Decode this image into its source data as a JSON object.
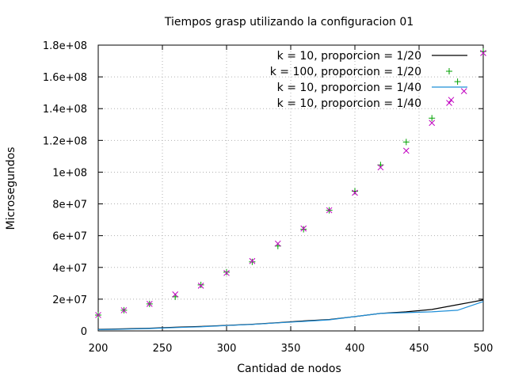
{
  "chart_data": {
    "type": "line",
    "title": "Tiempos grasp utilizando la configuracion 01",
    "xlabel": "Cantidad de nodos",
    "ylabel": "Microsegundos",
    "xlim": [
      200,
      500
    ],
    "ylim": [
      0,
      180000000
    ],
    "xticks": [
      200,
      250,
      300,
      350,
      400,
      450,
      500
    ],
    "xtick_labels": [
      "200",
      "250",
      "300",
      "350",
      "400",
      "450",
      "500"
    ],
    "yticks": [
      0,
      20000000,
      40000000,
      60000000,
      80000000,
      100000000,
      120000000,
      140000000,
      160000000,
      180000000
    ],
    "ytick_labels": [
      "0",
      "2e+07",
      "4e+07",
      "6e+07",
      "8e+07",
      "1e+08",
      "1.2e+08",
      "1.4e+08",
      "1.6e+08",
      "1.8e+08"
    ],
    "grid": true,
    "legend_position": "top-right",
    "series": [
      {
        "name": "k = 10, proporcion = 1/20",
        "style": "line",
        "color": "#000000",
        "x": [
          200,
          220,
          240,
          260,
          280,
          300,
          320,
          340,
          360,
          380,
          400,
          420,
          440,
          460,
          480,
          500
        ],
        "y": [
          1000000,
          1300000,
          1700000,
          2300000,
          2800000,
          3500000,
          4200000,
          5200000,
          6300000,
          7200000,
          9000000,
          11000000,
          12000000,
          13500000,
          16500000,
          19500000
        ]
      },
      {
        "name": "k = 100, proporcion = 1/20",
        "style": "plus",
        "color": "#00a000",
        "x": [
          200,
          220,
          240,
          260,
          280,
          300,
          320,
          340,
          360,
          380,
          400,
          420,
          440,
          460,
          480,
          500
        ],
        "y": [
          10000000,
          13000000,
          17000000,
          21500000,
          29000000,
          37000000,
          43500000,
          53500000,
          64000000,
          76000000,
          88000000,
          104500000,
          119000000,
          134000000,
          157000000,
          176000000
        ]
      },
      {
        "name": "k = 10, proporcion = 1/40",
        "style": "line",
        "color": "#1f8fd8",
        "x": [
          200,
          220,
          240,
          260,
          280,
          300,
          320,
          340,
          360,
          380,
          400,
          420,
          440,
          460,
          480,
          500
        ],
        "y": [
          800000,
          1100000,
          1500000,
          2100000,
          2600000,
          3400000,
          4100000,
          5100000,
          6000000,
          7000000,
          9000000,
          11000000,
          11500000,
          12000000,
          13000000,
          18500000
        ]
      },
      {
        "name": "k = 10, proporcion = 1/40",
        "style": "cross",
        "color": "#c000c0",
        "x": [
          200,
          220,
          240,
          260,
          280,
          300,
          320,
          340,
          360,
          380,
          400,
          420,
          440,
          460,
          475,
          485,
          500
        ],
        "y": [
          10000000,
          13000000,
          17000000,
          23000000,
          28500000,
          36500000,
          44000000,
          55000000,
          64500000,
          76000000,
          87000000,
          103000000,
          113500000,
          131000000,
          145500000,
          151000000,
          175000000
        ]
      }
    ]
  }
}
